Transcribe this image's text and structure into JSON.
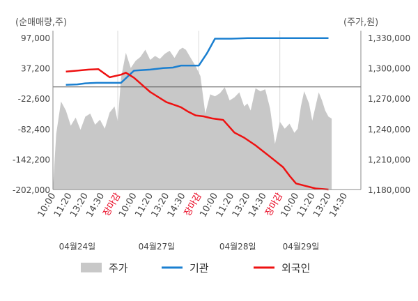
{
  "colors": {
    "price": "#c8c8c8",
    "institution": "#1a7fd0",
    "foreign": "#ee1111",
    "closing_label": "#e8001c",
    "axis_text": "#444444",
    "grid": "#d9d9d9"
  },
  "chart_data": {
    "type": "line",
    "left_axis_label": "(순매매량,주)",
    "right_axis_label": "(주가,원)",
    "left_ticks": [
      "97,000",
      "37,200",
      "-22,600",
      "-82,400",
      "-142,200",
      "-202,000"
    ],
    "right_ticks": [
      "1,330,000",
      "1,300,000",
      "1,270,000",
      "1,240,000",
      "1,210,000",
      "1,180,000"
    ],
    "left_ylim": [
      -202000,
      97000
    ],
    "right_ylim": [
      1180000,
      1330000
    ],
    "reference_line": 0,
    "x_tick_labels": [
      "10:00",
      "11:20",
      "13:20",
      "14:30",
      "장마감",
      "10:00",
      "11:20",
      "13:20",
      "14:30",
      "장마감",
      "10:00",
      "11:20",
      "13:20",
      "14:30",
      "장마감",
      "10:00",
      "11:20",
      "13:20",
      "14:30"
    ],
    "days": [
      "04월24일",
      "04월27일",
      "04월28일",
      "04월29일"
    ],
    "legend": [
      {
        "name": "주가",
        "kind": "area",
        "color": "#c8c8c8"
      },
      {
        "name": "기관",
        "kind": "line",
        "color": "#1a7fd0"
      },
      {
        "name": "외국인",
        "kind": "line",
        "color": "#ee1111"
      }
    ],
    "series": [
      {
        "name": "주가",
        "kind": "area",
        "axis": "right",
        "x": [
          0,
          0.2,
          0.5,
          0.8,
          1.1,
          1.4,
          1.7,
          2.0,
          2.3,
          2.6,
          2.9,
          3.2,
          3.5,
          3.8,
          4.0,
          4.2,
          4.5,
          4.8,
          5.1,
          5.4,
          5.7,
          6.0,
          6.3,
          6.6,
          6.9,
          7.2,
          7.5,
          7.8,
          8.0,
          8.2,
          8.5,
          8.8,
          9.1,
          9.4,
          9.7,
          10.0,
          10.3,
          10.6,
          10.9,
          11.2,
          11.5,
          11.8,
          12.0,
          12.2,
          12.5,
          12.8,
          13.1,
          13.4,
          13.7,
          14.0,
          14.3,
          14.6,
          14.9,
          15.1,
          15.3,
          15.5,
          15.8,
          16.0,
          16.2,
          16.4,
          16.6,
          16.8,
          17.0,
          17.2
        ],
        "values": [
          1181000,
          1235000,
          1267000,
          1258000,
          1243000,
          1251000,
          1239000,
          1252000,
          1255000,
          1244000,
          1249000,
          1240000,
          1256000,
          1262000,
          1247000,
          1290000,
          1315000,
          1300000,
          1307000,
          1311000,
          1318000,
          1308000,
          1312000,
          1309000,
          1314000,
          1317000,
          1310000,
          1318000,
          1320000,
          1318000,
          1310000,
          1302000,
          1292000,
          1255000,
          1274000,
          1272000,
          1275000,
          1281000,
          1268000,
          1271000,
          1276000,
          1262000,
          1265000,
          1258000,
          1280000,
          1277000,
          1279000,
          1260000,
          1225000,
          1247000,
          1240000,
          1245000,
          1236000,
          1240000,
          1262000,
          1277000,
          1265000,
          1248000,
          1262000,
          1276000,
          1268000,
          1258000,
          1252000,
          1250000
        ]
      },
      {
        "name": "기관",
        "kind": "line",
        "axis": "left",
        "x": [
          0.8,
          1.5,
          2.0,
          2.7,
          3.4,
          4.2,
          4.6,
          5.0,
          6.0,
          6.8,
          7.4,
          7.9,
          8.3,
          8.8,
          9.0,
          9.5,
          10.0,
          11.0,
          12.0,
          13.0,
          14.0,
          15.0,
          15.5,
          16.2,
          17.0
        ],
        "values": [
          4000,
          5000,
          7000,
          8000,
          8000,
          8000,
          20000,
          32000,
          34000,
          37000,
          38000,
          42000,
          42000,
          42000,
          42000,
          66000,
          95000,
          95000,
          96000,
          96000,
          96000,
          96000,
          96000,
          96000,
          96000
        ]
      },
      {
        "name": "외국인",
        "kind": "line",
        "axis": "left",
        "x": [
          0.8,
          1.5,
          2.2,
          2.8,
          3.5,
          4.2,
          4.5,
          5.0,
          6.0,
          7.0,
          7.9,
          8.3,
          8.8,
          9.3,
          9.8,
          10.5,
          11.2,
          11.8,
          12.5,
          13.3,
          14.2,
          14.6,
          15.0,
          15.6,
          16.2,
          17.0
        ],
        "values": [
          30000,
          32000,
          34000,
          35000,
          19000,
          24000,
          28000,
          18000,
          -10000,
          -30000,
          -40000,
          -48000,
          -56000,
          -58000,
          -62000,
          -65000,
          -90000,
          -100000,
          -115000,
          -135000,
          -158000,
          -175000,
          -190000,
          -195000,
          -200000,
          -202000
        ]
      }
    ]
  }
}
